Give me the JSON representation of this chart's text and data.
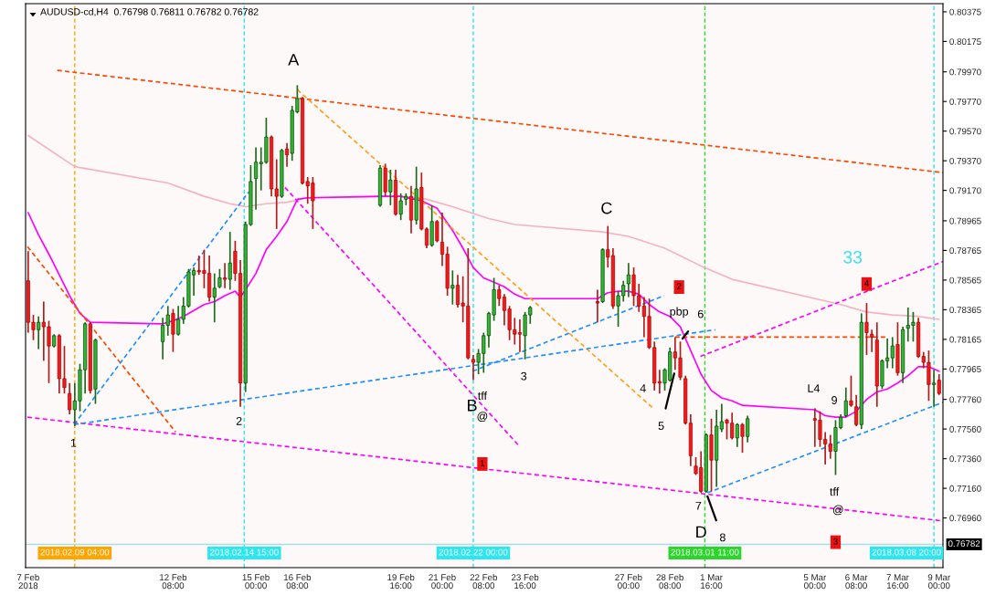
{
  "chart_data": {
    "type": "candlestick",
    "title": "AUDUSD-cd,H4  0.76798 0.76811 0.76782 0.76782",
    "x": [
      "2018-02-07T16:00",
      "2018-02-07T20:00",
      "2018-02-08T00:00",
      "2018-02-08T04:00",
      "2018-02-08T08:00",
      "2018-02-08T12:00",
      "2018-02-08T16:00",
      "2018-02-08T20:00",
      "2018-02-09T00:00",
      "2018-02-09T04:00",
      "2018-02-09T08:00",
      "2018-02-09T12:00",
      "2018-02-09T16:00",
      "2018-02-09T20:00",
      "2018-02-12T00:00",
      "2018-02-12T04:00",
      "2018-02-12T08:00",
      "2018-02-12T12:00",
      "2018-02-12T16:00",
      "2018-02-12T20:00",
      "2018-02-13T00:00",
      "2018-02-13T04:00",
      "2018-02-13T08:00",
      "2018-02-13T12:00",
      "2018-02-13T16:00",
      "2018-02-13T20:00",
      "2018-02-14T00:00",
      "2018-02-14T04:00",
      "2018-02-14T08:00",
      "2018-02-14T12:00",
      "2018-02-14T16:00",
      "2018-02-14T20:00",
      "2018-02-15T00:00",
      "2018-02-15T04:00",
      "2018-02-15T08:00",
      "2018-02-15T12:00",
      "2018-02-15T16:00",
      "2018-02-15T20:00",
      "2018-02-16T00:00",
      "2018-02-16T04:00",
      "2018-02-16T08:00",
      "2018-02-16T12:00",
      "2018-02-16T16:00",
      "2018-02-16T20:00",
      "2018-02-19T00:00",
      "2018-02-19T04:00",
      "2018-02-19T08:00",
      "2018-02-19T12:00",
      "2018-02-19T16:00",
      "2018-02-19T20:00",
      "2018-02-20T00:00",
      "2018-02-20T04:00",
      "2018-02-20T08:00",
      "2018-02-20T12:00",
      "2018-02-20T16:00",
      "2018-02-20T20:00",
      "2018-02-21T00:00",
      "2018-02-21T04:00",
      "2018-02-21T08:00",
      "2018-02-21T12:00",
      "2018-02-21T16:00",
      "2018-02-21T20:00",
      "2018-02-22T00:00",
      "2018-02-22T04:00",
      "2018-02-22T08:00",
      "2018-02-22T12:00",
      "2018-02-22T16:00",
      "2018-02-22T20:00",
      "2018-02-23T00:00",
      "2018-02-23T04:00",
      "2018-02-23T08:00",
      "2018-02-23T12:00",
      "2018-02-23T16:00",
      "2018-02-23T20:00",
      "2018-02-26T00:00",
      "2018-02-26T04:00",
      "2018-02-26T08:00",
      "2018-02-26T12:00",
      "2018-02-26T16:00",
      "2018-02-26T20:00",
      "2018-02-27T00:00",
      "2018-02-27T04:00",
      "2018-02-27T08:00",
      "2018-02-27T12:00",
      "2018-02-27T16:00",
      "2018-02-27T20:00",
      "2018-02-28T00:00",
      "2018-02-28T04:00",
      "2018-02-28T08:00",
      "2018-02-28T12:00",
      "2018-02-28T16:00",
      "2018-02-28T20:00",
      "2018-03-01T00:00",
      "2018-03-01T04:00",
      "2018-03-01T08:00",
      "2018-03-01T12:00",
      "2018-03-01T16:00",
      "2018-03-01T20:00",
      "2018-03-02T00:00",
      "2018-03-02T04:00",
      "2018-03-02T08:00",
      "2018-03-02T12:00",
      "2018-03-02T16:00",
      "2018-03-02T20:00",
      "2018-03-05T00:00",
      "2018-03-05T04:00",
      "2018-03-05T08:00",
      "2018-03-05T12:00",
      "2018-03-05T16:00",
      "2018-03-05T20:00",
      "2018-03-06T00:00",
      "2018-03-06T04:00",
      "2018-03-06T08:00",
      "2018-03-06T12:00",
      "2018-03-06T16:00",
      "2018-03-06T20:00",
      "2018-03-07T00:00",
      "2018-03-07T04:00",
      "2018-03-07T08:00",
      "2018-03-07T12:00",
      "2018-03-07T16:00",
      "2018-03-07T20:00",
      "2018-03-08T00:00",
      "2018-03-08T04:00",
      "2018-03-08T08:00",
      "2018-03-08T12:00",
      "2018-03-08T16:00",
      "2018-03-08T20:00",
      "2018-03-09T00:00"
    ],
    "ohlc": [
      [
        0.7856,
        0.7876,
        0.7821,
        0.7828
      ],
      [
        0.7828,
        0.7833,
        0.7816,
        0.7823
      ],
      [
        0.7823,
        0.7832,
        0.781,
        0.7828
      ],
      [
        0.7828,
        0.7842,
        0.7802,
        0.7825
      ],
      [
        0.7825,
        0.7829,
        0.7787,
        0.7812
      ],
      [
        0.7812,
        0.782,
        0.7811,
        0.7819
      ],
      [
        0.7819,
        0.782,
        0.778,
        0.779
      ],
      [
        0.779,
        0.7812,
        0.778,
        0.7784
      ],
      [
        0.778,
        0.7787,
        0.7766,
        0.7769
      ],
      [
        0.7769,
        0.7787,
        0.7758,
        0.7775
      ],
      [
        0.7775,
        0.78,
        0.7768,
        0.7796
      ],
      [
        0.7796,
        0.7828,
        0.778,
        0.7827
      ],
      [
        0.7827,
        0.7828,
        0.778,
        0.7782
      ],
      [
        0.7783,
        0.7817,
        0.7773,
        0.7816
      ],
      [
        0.7815,
        0.7831,
        0.7803,
        0.7826
      ],
      [
        0.7826,
        0.7839,
        0.7819,
        0.7833
      ],
      [
        0.7834,
        0.7837,
        0.7808,
        0.782
      ],
      [
        0.782,
        0.7839,
        0.7819,
        0.783
      ],
      [
        0.783,
        0.7845,
        0.7827,
        0.7839
      ],
      [
        0.7839,
        0.7864,
        0.7838,
        0.7862
      ],
      [
        0.786,
        0.7865,
        0.7846,
        0.7863
      ],
      [
        0.7863,
        0.7873,
        0.786,
        0.7862
      ],
      [
        0.7863,
        0.7877,
        0.7851,
        0.7861
      ],
      [
        0.7861,
        0.7873,
        0.7842,
        0.7845
      ],
      [
        0.7845,
        0.7861,
        0.7828,
        0.7851
      ],
      [
        0.7852,
        0.7864,
        0.7851,
        0.7858
      ],
      [
        0.7858,
        0.7868,
        0.7851,
        0.7857
      ],
      [
        0.7857,
        0.7889,
        0.785,
        0.7868
      ],
      [
        0.7876,
        0.7883,
        0.7856,
        0.7861
      ],
      [
        0.7861,
        0.787,
        0.7771,
        0.7787
      ],
      [
        0.7787,
        0.7896,
        0.7781,
        0.7894
      ],
      [
        0.7894,
        0.7934,
        0.7893,
        0.7923
      ],
      [
        0.7925,
        0.7946,
        0.7904,
        0.7936
      ],
      [
        0.7935,
        0.7946,
        0.7917,
        0.7936
      ],
      [
        0.7936,
        0.7966,
        0.7935,
        0.7953
      ],
      [
        0.7953,
        0.7954,
        0.7913,
        0.7918
      ],
      [
        0.7918,
        0.7938,
        0.7891,
        0.7913
      ],
      [
        0.7913,
        0.7945,
        0.7912,
        0.7944
      ],
      [
        0.7945,
        0.7949,
        0.7933,
        0.7941
      ],
      [
        0.7942,
        0.7974,
        0.7937,
        0.7971
      ],
      [
        0.797,
        0.7988,
        0.7969,
        0.7979
      ],
      [
        0.7979,
        0.798,
        0.7921,
        0.7922
      ],
      [
        0.7923,
        0.7926,
        0.7908,
        0.792
      ],
      [
        0.7922,
        0.7926,
        0.7891,
        0.791
      ],
      [
        0.7907,
        0.7934,
        0.7906,
        0.7932
      ],
      [
        0.7932,
        0.7935,
        0.7913,
        0.7916
      ],
      [
        0.7916,
        0.7931,
        0.7907,
        0.7924
      ],
      [
        0.7924,
        0.7931,
        0.79,
        0.7901
      ],
      [
        0.7901,
        0.7915,
        0.7897,
        0.791
      ],
      [
        0.7911,
        0.7915,
        0.7907,
        0.7913
      ],
      [
        0.7913,
        0.792,
        0.7888,
        0.7897
      ],
      [
        0.7897,
        0.7933,
        0.7894,
        0.7918
      ],
      [
        0.7919,
        0.7929,
        0.789,
        0.7891
      ],
      [
        0.7891,
        0.7892,
        0.7878,
        0.788
      ],
      [
        0.788,
        0.7907,
        0.7879,
        0.7896
      ],
      [
        0.7896,
        0.7897,
        0.7882,
        0.7883
      ],
      [
        0.7882,
        0.7902,
        0.7866,
        0.7874
      ],
      [
        0.7874,
        0.7879,
        0.7846,
        0.7851
      ],
      [
        0.7851,
        0.7863,
        0.784,
        0.7853
      ],
      [
        0.7853,
        0.786,
        0.7838,
        0.784
      ],
      [
        0.7841,
        0.7859,
        0.7828,
        0.7839
      ],
      [
        0.7839,
        0.7878,
        0.7803,
        0.7804
      ],
      [
        0.7803,
        0.7806,
        0.7789,
        0.7801
      ],
      [
        0.7801,
        0.781,
        0.7793,
        0.7807
      ],
      [
        0.7807,
        0.7821,
        0.7794,
        0.7819
      ],
      [
        0.7819,
        0.7835,
        0.7811,
        0.7834
      ],
      [
        0.7833,
        0.7858,
        0.7829,
        0.785
      ],
      [
        0.785,
        0.7853,
        0.7839,
        0.7844
      ],
      [
        0.7845,
        0.7847,
        0.7826,
        0.7836
      ],
      [
        0.7837,
        0.7839,
        0.7816,
        0.7823
      ],
      [
        0.7823,
        0.7831,
        0.7813,
        0.782
      ],
      [
        0.7821,
        0.783,
        0.7808,
        0.782
      ],
      [
        0.7819,
        0.7835,
        0.7803,
        0.7833
      ],
      [
        0.7833,
        0.7839,
        0.7827,
        0.7838
      ],
      [
        0.7842,
        0.785,
        0.7828,
        0.7841
      ],
      [
        0.7842,
        0.7878,
        0.7841,
        0.7877
      ],
      [
        0.7877,
        0.7893,
        0.7865,
        0.7872
      ],
      [
        0.7873,
        0.7878,
        0.7837,
        0.7839
      ],
      [
        0.7839,
        0.7849,
        0.7825,
        0.7846
      ],
      [
        0.7846,
        0.7856,
        0.7842,
        0.7853
      ],
      [
        0.7854,
        0.7868,
        0.7845,
        0.786
      ],
      [
        0.786,
        0.7865,
        0.7839,
        0.7846
      ],
      [
        0.7846,
        0.7854,
        0.7835,
        0.7839
      ],
      [
        0.7839,
        0.7845,
        0.7818,
        0.7832
      ],
      [
        0.7832,
        0.7844,
        0.781,
        0.7811
      ],
      [
        0.7811,
        0.7815,
        0.7782,
        0.7787
      ],
      [
        0.7788,
        0.7796,
        0.778,
        0.7787
      ],
      [
        0.7787,
        0.7797,
        0.7782,
        0.7796
      ],
      [
        0.7789,
        0.7811,
        0.7788,
        0.7808
      ],
      [
        0.7808,
        0.7818,
        0.7796,
        0.7804
      ],
      [
        0.7804,
        0.7815,
        0.7789,
        0.7791
      ],
      [
        0.779,
        0.7792,
        0.7759,
        0.776
      ],
      [
        0.776,
        0.7766,
        0.7731,
        0.7738
      ],
      [
        0.7731,
        0.7737,
        0.7725,
        0.7726
      ],
      [
        0.773,
        0.7741,
        0.7713,
        0.7714
      ],
      [
        0.7714,
        0.7753,
        0.7713,
        0.7752
      ],
      [
        0.7752,
        0.7763,
        0.7714,
        0.7735
      ],
      [
        0.7735,
        0.7769,
        0.7717,
        0.7758
      ],
      [
        0.7756,
        0.7773,
        0.7754,
        0.7761
      ],
      [
        0.7762,
        0.7763,
        0.7749,
        0.776
      ],
      [
        0.776,
        0.7767,
        0.7749,
        0.775
      ],
      [
        0.775,
        0.776,
        0.7744,
        0.7759
      ],
      [
        0.7759,
        0.776,
        0.774,
        0.7751
      ],
      [
        0.7751,
        0.7765,
        0.7747,
        0.7763
      ],
      [
        0.7763,
        0.777,
        0.7744,
        0.7762
      ],
      [
        0.7762,
        0.7768,
        0.7744,
        0.7749
      ],
      [
        0.7749,
        0.7754,
        0.7732,
        0.7746
      ],
      [
        0.7746,
        0.7752,
        0.7736,
        0.7741
      ],
      [
        0.7741,
        0.7762,
        0.7725,
        0.7757
      ],
      [
        0.7757,
        0.7766,
        0.7756,
        0.7764
      ],
      [
        0.7765,
        0.7784,
        0.7764,
        0.7775
      ],
      [
        0.7775,
        0.7792,
        0.7771,
        0.7772
      ],
      [
        0.7771,
        0.7779,
        0.7758,
        0.7759
      ],
      [
        0.7759,
        0.7834,
        0.7756,
        0.7828
      ],
      [
        0.7828,
        0.7841,
        0.7806,
        0.7821
      ],
      [
        0.782,
        0.7823,
        0.7808,
        0.7818
      ],
      [
        0.7816,
        0.7828,
        0.7771,
        0.7785
      ],
      [
        0.7785,
        0.7803,
        0.7783,
        0.7802
      ],
      [
        0.7802,
        0.7817,
        0.7797,
        0.7804
      ],
      [
        0.7804,
        0.7818,
        0.7797,
        0.7812
      ],
      [
        0.7813,
        0.7828,
        0.7792,
        0.7794
      ],
      [
        0.7794,
        0.7825,
        0.7787,
        0.7823
      ],
      [
        0.7824,
        0.7838,
        0.7815,
        0.7826
      ],
      [
        0.7826,
        0.7835,
        0.7815,
        0.7828
      ],
      [
        0.7828,
        0.7831,
        0.7804,
        0.7805
      ],
      [
        0.7805,
        0.7808,
        0.7797,
        0.7801
      ],
      [
        0.7801,
        0.7809,
        0.7775,
        0.7786
      ],
      [
        0.7786,
        0.7796,
        0.7771,
        0.7787
      ],
      [
        0.7789,
        0.7793,
        0.7779,
        0.778
      ]
    ],
    "xlim": [
      "2018-02-07T14:00",
      "2018-03-09T03:00"
    ],
    "xticks": [
      {
        "value": "2018-02-07T16:00",
        "label": "7 Feb 2018"
      },
      {
        "value": "2018-02-12T08:00",
        "label": "12 Feb 08:00"
      },
      {
        "value": "2018-02-15T00:00",
        "label": "15 Feb 00:00"
      },
      {
        "value": "2018-02-16T08:00",
        "label": "16 Feb 08:00"
      },
      {
        "value": "2018-02-19T16:00",
        "label": "19 Feb 16:00"
      },
      {
        "value": "2018-02-21T00:00",
        "label": "21 Feb 00:00"
      },
      {
        "value": "2018-02-22T08:00",
        "label": "22 Feb 08:00"
      },
      {
        "value": "2018-02-23T16:00",
        "label": "23 Feb 16:00"
      },
      {
        "value": "2018-02-27T00:00",
        "label": "27 Feb 00:00"
      },
      {
        "value": "2018-02-28T08:00",
        "label": "28 Feb 08:00"
      },
      {
        "value": "2018-03-01T16:00",
        "label": "1 Mar 16:00"
      },
      {
        "value": "2018-03-05T00:00",
        "label": "5 Mar 00:00"
      },
      {
        "value": "2018-03-06T08:00",
        "label": "6 Mar 08:00"
      },
      {
        "value": "2018-03-07T16:00",
        "label": "7 Mar 16:00"
      },
      {
        "value": "2018-03-09T00:00",
        "label": "9 Mar 00:00"
      }
    ],
    "ylim": [
      0.76625,
      0.8043
    ],
    "yticks": [
      0.80375,
      0.80175,
      {
        "value": 0.7997,
        "label": "0.79970"
      },
      {
        "value": 0.7977,
        "label": "0.79770"
      },
      {
        "value": 0.7957,
        "label": "0.79570"
      },
      {
        "value": 0.7937,
        "label": "0.79370"
      },
      {
        "value": 0.7917,
        "label": "0.79170"
      },
      0.78965,
      0.78765,
      0.78565,
      0.78365,
      0.78165,
      0.77965,
      {
        "value": 0.7776,
        "label": "0.77760"
      },
      {
        "value": 0.7756,
        "label": "0.77560"
      },
      {
        "value": 0.7736,
        "label": "0.77360"
      },
      {
        "value": 0.7716,
        "label": "0.77160"
      },
      {
        "value": 0.7696,
        "label": "0.76960"
      }
    ],
    "series": [
      {
        "type": "line",
        "color": "#f5b3c2",
        "line_style": "solid",
        "x": [
          "2018-02-07T16:00",
          "2018-02-09T04:00",
          "2018-02-12T04:00",
          "2018-02-13T08:00",
          "2018-02-14T04:00",
          "2018-02-14T16:00",
          "2018-02-15T08:00",
          "2018-02-16T00:00",
          "2018-02-16T16:00",
          "2018-02-19T16:00",
          "2018-02-20T12:00",
          "2018-02-21T08:00",
          "2018-02-22T12:00",
          "2018-02-23T08:00",
          "2018-02-26T04:00",
          "2018-02-27T00:00",
          "2018-02-28T04:00",
          "2018-03-01T08:00",
          "2018-03-02T08:00",
          "2018-03-05T20:00",
          "2018-03-06T16:00",
          "2018-03-07T12:00",
          "2018-03-08T08:00",
          "2018-03-09T00:00"
        ],
        "values": [
          0.7954,
          0.7933,
          0.7922,
          0.7913,
          0.7908,
          0.7906,
          0.7908,
          0.7909,
          0.7912,
          0.7913,
          0.7911,
          0.7906,
          0.7898,
          0.7894,
          0.7889,
          0.7886,
          0.7878,
          0.7866,
          0.7857,
          0.784,
          0.7835,
          0.7833,
          0.7832,
          0.783
        ]
      },
      {
        "type": "line",
        "color": "#ff00ff",
        "line_style": "solid",
        "x": [
          "2018-02-07T16:00",
          "2018-02-08T00:00",
          "2018-02-08T08:00",
          "2018-02-08T16:00",
          "2018-02-09T00:00",
          "2018-02-09T08:00",
          "2018-02-09T16:00",
          "2018-02-12T00:00",
          "2018-02-12T08:00",
          "2018-02-12T16:00",
          "2018-02-13T00:00",
          "2018-02-13T08:00",
          "2018-02-13T16:00",
          "2018-02-14T00:00",
          "2018-02-14T08:00",
          "2018-02-14T12:00",
          "2018-02-14T16:00",
          "2018-02-15T00:00",
          "2018-02-15T08:00",
          "2018-02-15T16:00",
          "2018-02-16T00:00",
          "2018-02-16T08:00",
          "2018-02-16T16:00",
          "2018-02-19T00:00",
          "2018-02-19T16:00",
          "2018-02-20T08:00",
          "2018-02-20T20:00",
          "2018-02-21T08:00",
          "2018-02-21T16:00",
          "2018-02-22T00:00",
          "2018-02-22T08:00",
          "2018-02-22T16:00",
          "2018-02-23T00:00",
          "2018-02-23T08:00",
          "2018-02-23T16:00",
          "2018-02-26T00:00",
          "2018-02-26T08:00",
          "2018-02-26T16:00",
          "2018-02-27T00:00",
          "2018-02-27T08:00",
          "2018-02-27T16:00",
          "2018-02-28T00:00",
          "2018-02-28T08:00",
          "2018-02-28T16:00",
          "2018-03-01T00:00",
          "2018-03-01T08:00",
          "2018-03-01T16:00",
          "2018-03-02T00:00",
          "2018-03-02T08:00",
          "2018-03-02T16:00",
          "2018-03-05T00:00",
          "2018-03-05T08:00",
          "2018-03-05T16:00",
          "2018-03-06T00:00",
          "2018-03-06T08:00",
          "2018-03-06T16:00",
          "2018-03-07T00:00",
          "2018-03-07T08:00",
          "2018-03-07T16:00",
          "2018-03-08T00:00",
          "2018-03-08T08:00",
          "2018-03-08T16:00",
          "2018-03-09T00:00"
        ],
        "values": [
          0.7902,
          0.7887,
          0.7874,
          0.786,
          0.7846,
          0.7834,
          0.7828,
          0.7827,
          0.7829,
          0.7832,
          0.7836,
          0.784,
          0.7842,
          0.7846,
          0.7849,
          0.7845,
          0.785,
          0.7861,
          0.7877,
          0.7886,
          0.7896,
          0.7911,
          0.7912,
          0.7913,
          0.7913,
          0.791,
          0.7905,
          0.789,
          0.7878,
          0.7865,
          0.7858,
          0.7855,
          0.7852,
          0.7847,
          0.7844,
          0.7844,
          0.7848,
          0.7849,
          0.7849,
          0.7847,
          0.784,
          0.7835,
          0.7832,
          0.7825,
          0.7809,
          0.7793,
          0.7782,
          0.7777,
          0.7775,
          0.7772,
          0.7769,
          0.7765,
          0.7764,
          0.7764,
          0.7768,
          0.7776,
          0.7781,
          0.7783,
          0.7787,
          0.7792,
          0.7798,
          0.7798,
          0.7795
        ]
      },
      {
        "type": "line",
        "color": "#ff4500",
        "line_style": "dashed",
        "x": [
          "2018-02-08T14:30",
          "2018-03-09T03:00"
        ],
        "values": [
          0.7998,
          0.7929
        ]
      },
      {
        "type": "line",
        "color": "#ff4500",
        "line_style": "dashed",
        "x": [
          "2018-02-07T15:30",
          "2018-02-12T10:00"
        ],
        "values": [
          0.7879,
          0.7754
        ]
      },
      {
        "type": "line",
        "color": "#ff9f1a",
        "line_style": "dashed",
        "x": [
          "2018-02-16T08:00",
          "2018-02-27T19:00"
        ],
        "values": [
          0.7985,
          0.777
        ]
      },
      {
        "type": "line",
        "color": "#ff00ff",
        "line_style": "dashed",
        "x": [
          "2018-02-15T22:30",
          "2018-02-23T11:00"
        ],
        "values": [
          0.7919,
          0.7745
        ]
      },
      {
        "type": "line",
        "color": "#ff00ff",
        "line_style": "dashed",
        "x": [
          "2018-02-07T15:30",
          "2018-03-09T03:00"
        ],
        "values": [
          0.7764,
          0.7694
        ]
      },
      {
        "type": "line",
        "color": "#ff00ff",
        "line_style": "dashed",
        "x": [
          "2018-03-01T07:30",
          "2018-03-09T03:00"
        ],
        "values": [
          0.7805,
          0.7869
        ]
      },
      {
        "type": "line",
        "color": "#1e90ff",
        "line_style": "dashed",
        "x": [
          "2018-02-09T03:30",
          "2018-02-14T18:30"
        ],
        "values": [
          0.7759,
          0.7916
        ]
      },
      {
        "type": "line",
        "color": "#1e90ff",
        "line_style": "dashed",
        "x": [
          "2018-02-09T03:30",
          "2018-03-01T19:00"
        ],
        "values": [
          0.7759,
          0.7823
        ]
      },
      {
        "type": "line",
        "color": "#1e90ff",
        "line_style": "dashed",
        "x": [
          "2018-02-21T23:30",
          "2018-02-28T03:30"
        ],
        "values": [
          0.7795,
          0.7846
        ]
      },
      {
        "type": "line",
        "color": "#1e90ff",
        "line_style": "dashed",
        "x": [
          "2018-03-01T13:00",
          "2018-03-09T03:00"
        ],
        "values": [
          0.7713,
          0.7774
        ]
      },
      {
        "type": "line",
        "color": "#ff4500",
        "line_style": "dashed",
        "x": [
          "2018-02-28T12:00",
          "2018-03-07T07:30"
        ],
        "values": [
          0.7818,
          0.7818
        ]
      }
    ],
    "ref_lines": [
      {
        "axis": "x",
        "value": "2018-02-09T04:00",
        "label": "2018.02.09 04:00",
        "color": "#ffa500",
        "line_style": "dashed"
      },
      {
        "axis": "x",
        "value": "2018-02-14T15:00",
        "label": "2018.02.14 15:00",
        "color": "#2ee6f0",
        "line_style": "dashed"
      },
      {
        "axis": "x",
        "value": "2018-02-22T00:00",
        "label": "2018.02.22 00:00",
        "color": "#2ee6f0",
        "line_style": "dashed"
      },
      {
        "axis": "x",
        "value": "2018-03-01T11:00",
        "label": "2018.03.01 11:00",
        "color": "#2bd52b",
        "line_style": "dashed"
      },
      {
        "axis": "x",
        "value": "2018-03-08T20:00",
        "label": "2018.03.08 20:00",
        "color": "#2ee6f0",
        "line_style": "dashed"
      },
      {
        "axis": "y",
        "value": 0.76782,
        "label": "0.76782",
        "color": "#a9dde6",
        "line_style": "solid"
      }
    ],
    "annotations": [
      {
        "text": "A",
        "x": "2018-02-16T08:00",
        "y": 0.7988
      },
      {
        "text": "B",
        "x": "2018-02-22T00:00",
        "y": 0.7789
      },
      {
        "text": "C",
        "x": "2018-02-26T08:00",
        "y": 0.7893
      },
      {
        "text": "D",
        "x": "2018-03-01T08:00",
        "y": 0.7713
      },
      {
        "text": "1",
        "x": "2018-02-09T04:00",
        "y": 0.7758
      },
      {
        "text": "2",
        "x": "2018-02-14T12:00",
        "y": 0.7771
      },
      {
        "text": "3",
        "x": "2018-02-23T16:00",
        "y": 0.7803
      },
      {
        "text": "4",
        "x": "2018-02-27T20:00",
        "y": 0.7782
      },
      {
        "text": "5",
        "x": "2018-02-28T12:00",
        "y": 0.7796
      },
      {
        "text": "6",
        "x": "2018-02-28T16:00",
        "y": 0.7815
      },
      {
        "text": "7",
        "x": "2018-03-01T08:00",
        "y": 0.7713
      },
      {
        "text": "8",
        "x": "2018-03-01T12:00",
        "y": 0.7713
      },
      {
        "text": "9",
        "x": "2018-03-05T16:00",
        "y": 0.7762
      },
      {
        "text": "tff",
        "x": "2018-02-22T08:00",
        "y": 0.7794
      },
      "@",
      "1",
      {
        "text": "pbp",
        "x": "2018-02-28T16:00",
        "y": 0.7815
      },
      "2",
      {
        "text": "L4",
        "x": "2018-03-05T00:00",
        "y": 0.777
      },
      {
        "text": "tff",
        "x": "2018-03-05T16:00",
        "y": 0.7725
      },
      "@",
      "3",
      {
        "text": "4",
        "x": "2018-03-06T16:00",
        "y": 0.7841
      },
      "33"
    ]
  }
}
